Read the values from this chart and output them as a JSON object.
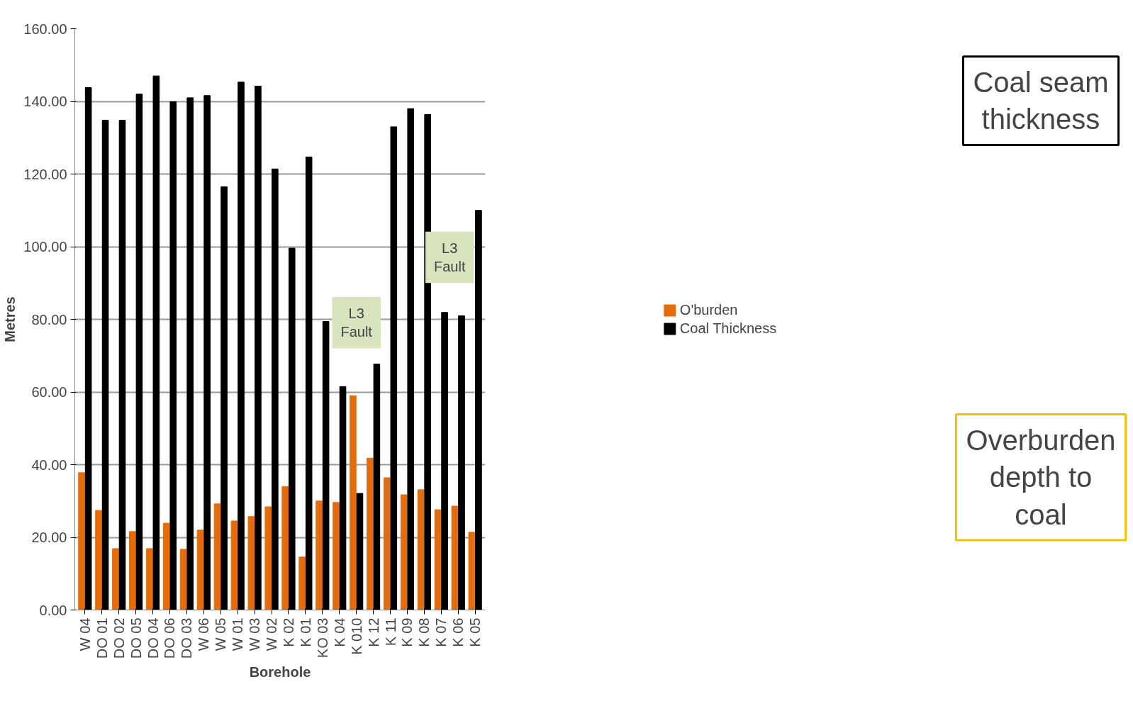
{
  "chart_data": {
    "type": "bar",
    "xlabel": "Borehole",
    "ylabel": "Metres",
    "categories": [
      "W 04",
      "DO 01",
      "DO 02",
      "DO 05",
      "DO 04",
      "DO 06",
      "DO 03",
      "W 06",
      "W 05",
      "W 01",
      "W 03",
      "W 02",
      "K 02",
      "K 01",
      "KO 03",
      "K 04",
      "K 010",
      "K 12",
      "K 11",
      "K 09",
      "K 08",
      "K 07",
      "K 06",
      "K 05"
    ],
    "series": [
      {
        "name": "O'burden",
        "color": "#e46c0a",
        "values": [
          37.8,
          27.4,
          16.9,
          21.6,
          16.9,
          23.9,
          16.7,
          22.0,
          29.2,
          24.5,
          25.7,
          28.4,
          34.0,
          14.6,
          30.0,
          29.6,
          59.0,
          41.8,
          36.4,
          31.7,
          33.1,
          27.6,
          28.6,
          21.4
        ]
      },
      {
        "name": "Coal Thickness",
        "color": "#000000",
        "values": [
          143.8,
          134.8,
          134.8,
          142.0,
          147.0,
          139.9,
          141.0,
          141.6,
          116.5,
          145.3,
          144.2,
          121.4,
          99.6,
          124.7,
          79.4,
          61.5,
          32.1,
          67.7,
          133.0,
          138.0,
          136.4,
          81.9,
          81.0,
          110.0
        ]
      }
    ],
    "ylim": [
      0,
      160
    ],
    "yticks": [
      {
        "value": 0,
        "label": "0.00"
      },
      {
        "value": 20,
        "label": "20.00"
      },
      {
        "value": 40,
        "label": "40.00"
      },
      {
        "value": 60,
        "label": "60.00"
      },
      {
        "value": 80,
        "label": "80.00"
      },
      {
        "value": 100,
        "label": "100.00"
      },
      {
        "value": 120,
        "label": "120.00"
      },
      {
        "value": 140,
        "label": "140.00"
      },
      {
        "value": 160,
        "label": "160.00"
      }
    ],
    "grid": "y",
    "legend": "right",
    "annotations": [
      "L3\nFault",
      "L3\nFault",
      "Coal seam thickness",
      "Overburden depth to coal"
    ]
  }
}
